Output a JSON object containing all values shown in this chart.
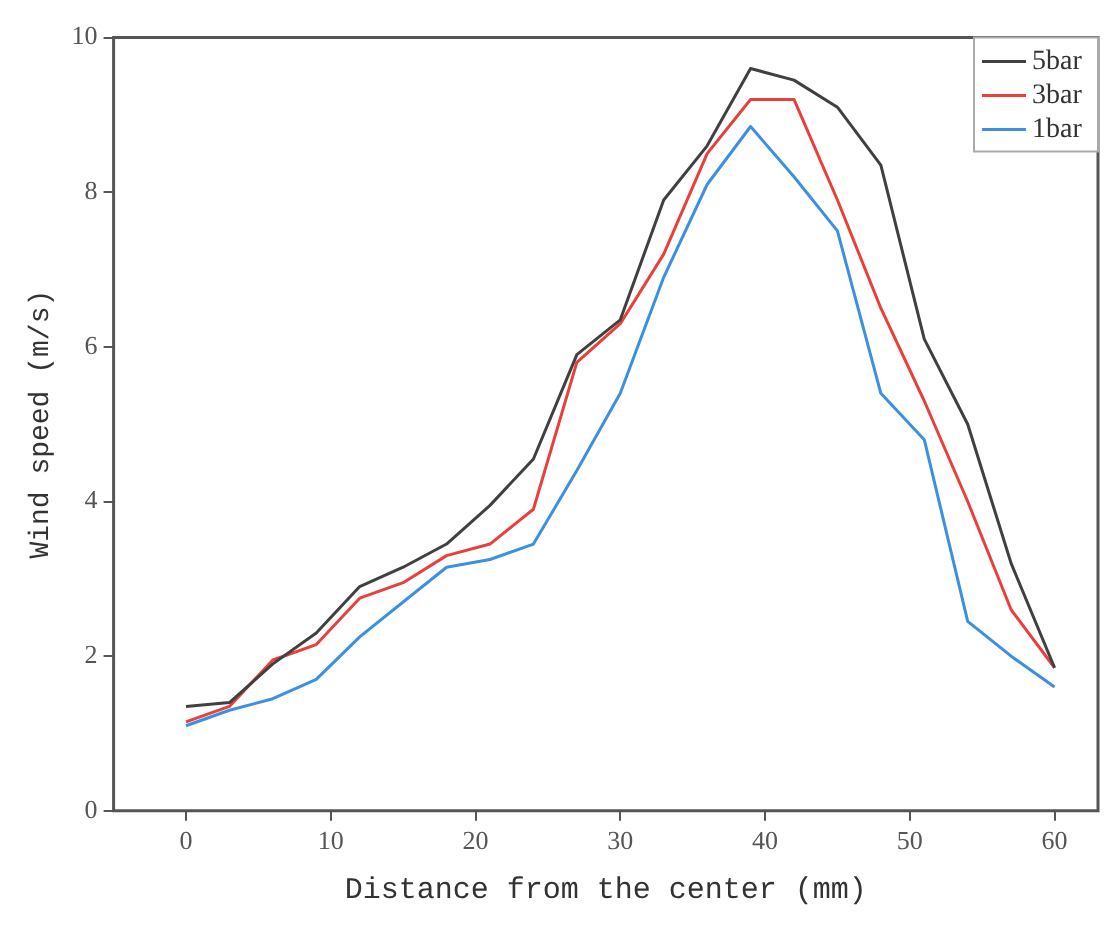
{
  "chart_data": {
    "type": "line",
    "xlabel": "Distance from the center (mm)",
    "ylabel": "Wind speed (m/s)",
    "x": [
      0,
      3,
      6,
      9,
      12,
      15,
      18,
      21,
      24,
      27,
      30,
      33,
      36,
      39,
      42,
      45,
      48,
      51,
      54,
      57,
      60
    ],
    "series": [
      {
        "name": "5bar",
        "color": "#404040",
        "values": [
          1.35,
          1.4,
          1.9,
          2.3,
          2.9,
          3.15,
          3.45,
          3.95,
          4.55,
          5.9,
          6.35,
          7.9,
          8.6,
          9.6,
          9.45,
          9.1,
          8.35,
          6.1,
          5.0,
          3.2,
          1.85
        ]
      },
      {
        "name": "3bar",
        "color": "#e8403c",
        "values": [
          1.15,
          1.35,
          1.95,
          2.15,
          2.75,
          2.95,
          3.3,
          3.45,
          3.9,
          5.8,
          6.3,
          7.2,
          8.5,
          9.2,
          9.2,
          7.9,
          6.5,
          5.3,
          4.0,
          2.6,
          1.85
        ]
      },
      {
        "name": "1bar",
        "color": "#3d8fe0",
        "values": [
          1.1,
          1.3,
          1.45,
          1.7,
          2.25,
          2.7,
          3.15,
          3.25,
          3.45,
          4.4,
          5.4,
          6.9,
          8.1,
          8.85,
          8.2,
          7.5,
          5.4,
          4.8,
          2.45,
          2.0,
          1.6
        ]
      }
    ],
    "xlim": [
      -5,
      63
    ],
    "xticks": [
      0,
      10,
      20,
      30,
      40,
      50,
      60
    ],
    "ylim": [
      0,
      10
    ],
    "yticks": [
      0,
      2,
      4,
      6,
      8,
      10
    ],
    "grid": false,
    "legend": "top right",
    "marker": "none",
    "line_style": "solid"
  }
}
